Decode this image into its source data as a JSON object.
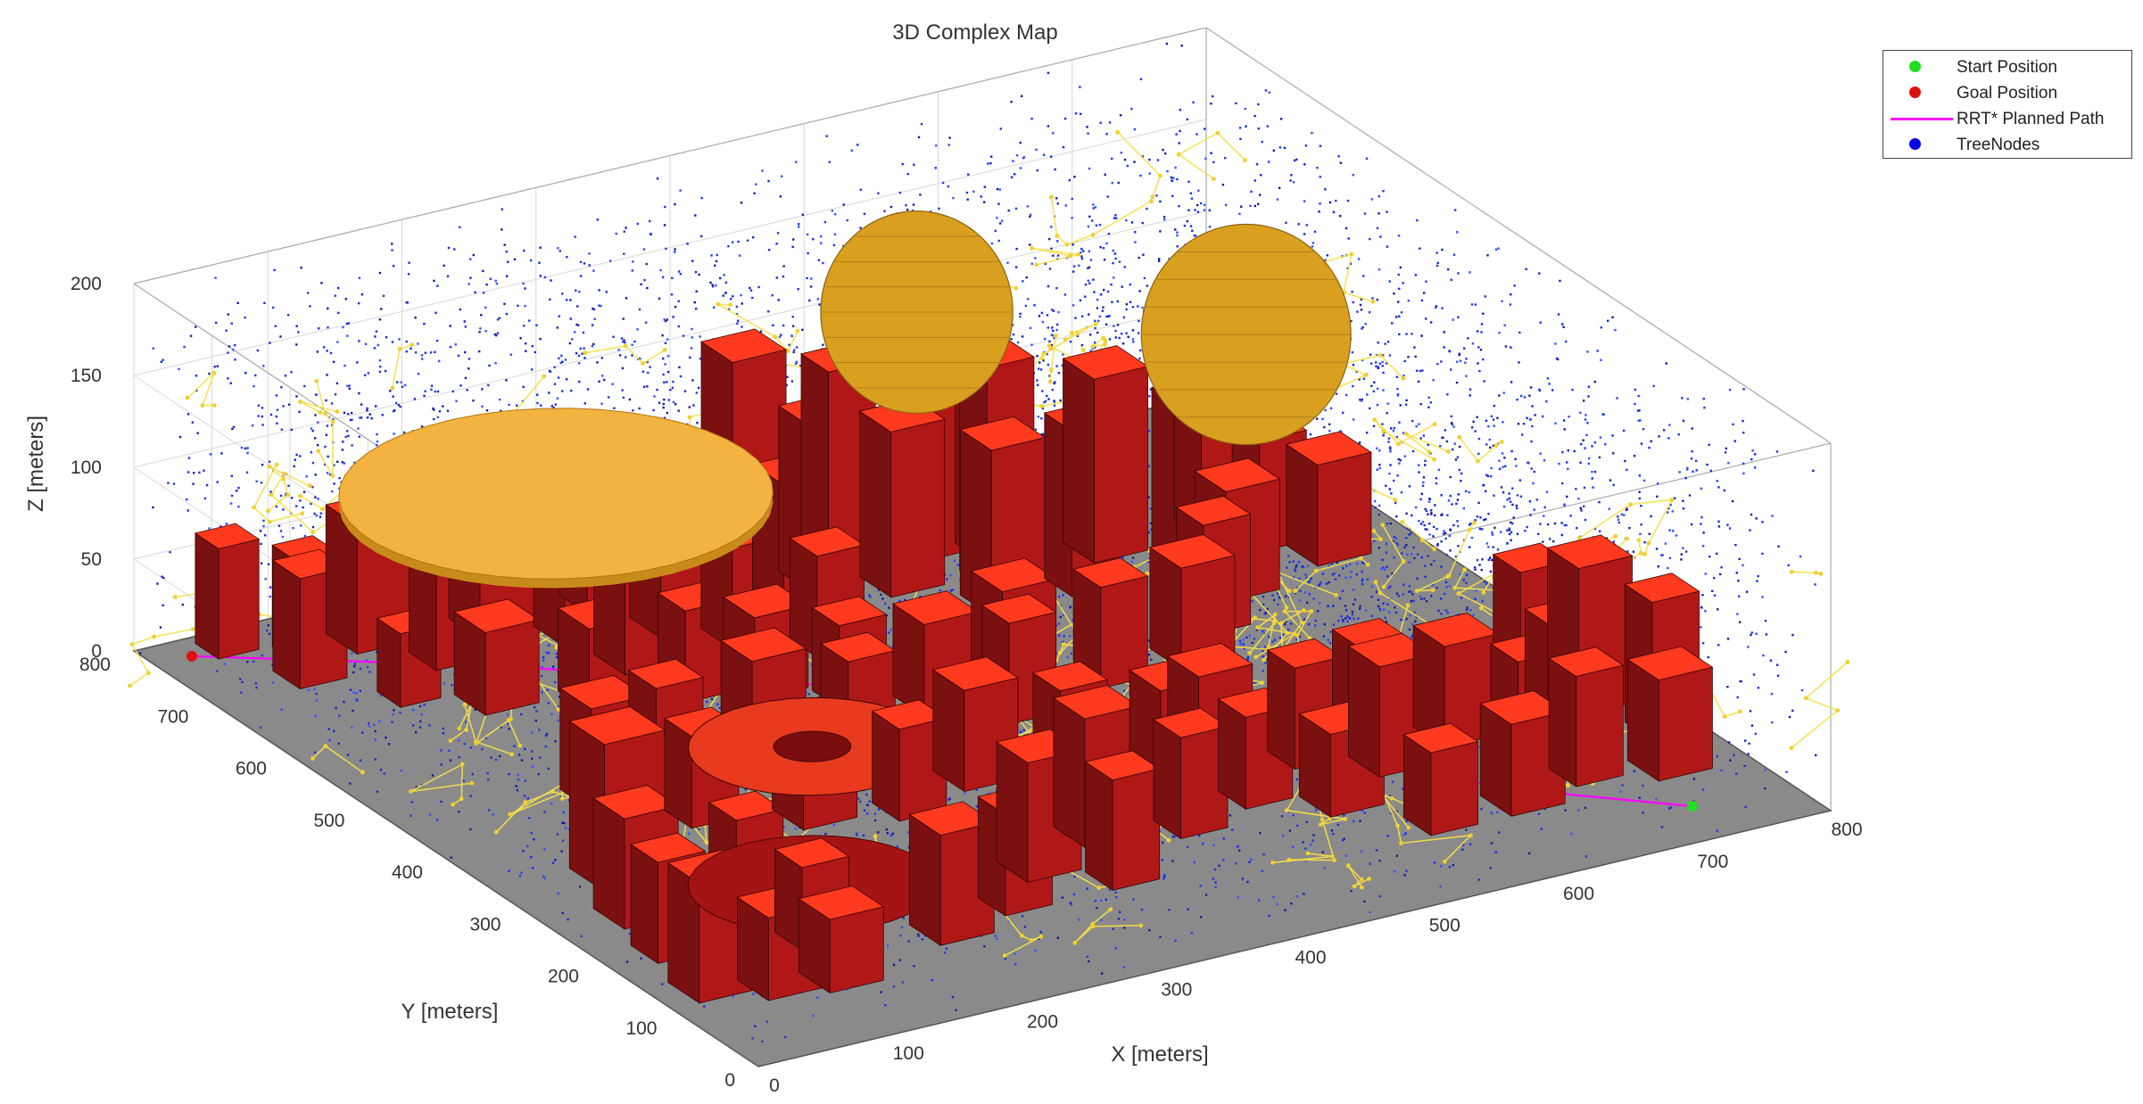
{
  "chart_data": {
    "type": "scatter",
    "title": "3D Complex Map",
    "xlabel": "X [meters]",
    "ylabel": "Y [meters]",
    "zlabel": "Z [meters]",
    "xlim": [
      0,
      800
    ],
    "ylim": [
      0,
      800
    ],
    "zlim": [
      0,
      200
    ],
    "x_ticks": [
      "0",
      "100",
      "200",
      "300",
      "400",
      "500",
      "600",
      "700",
      "800"
    ],
    "y_ticks": [
      "0",
      "100",
      "200",
      "300",
      "400",
      "500",
      "600",
      "700",
      "800"
    ],
    "z_ticks": [
      "0",
      "50",
      "100",
      "150",
      "200"
    ],
    "grid": true,
    "legend_position": "top-right",
    "legend": [
      {
        "label": "Start Position",
        "color": "#22dd22",
        "marker": "dot"
      },
      {
        "label": "Goal Position",
        "color": "#dd1111",
        "marker": "dot"
      },
      {
        "label": "RRT* Planned Path",
        "color": "#ff00ff",
        "marker": "line"
      },
      {
        "label": "TreeNodes",
        "color": "#0000ee",
        "marker": "dot"
      }
    ],
    "start_position": [
      720,
      40,
      5
    ],
    "goal_position": [
      20,
      760,
      5
    ],
    "planned_path": [
      [
        720,
        40,
        5
      ],
      [
        620,
        120,
        10
      ],
      [
        520,
        260,
        20
      ],
      [
        400,
        380,
        25
      ],
      [
        280,
        500,
        20
      ],
      [
        160,
        620,
        15
      ],
      [
        20,
        760,
        5
      ]
    ],
    "obstacles": {
      "buildings": [
        [
          40,
          760,
          0,
          30,
          30,
          60
        ],
        [
          80,
          730,
          0,
          30,
          30,
          55
        ],
        [
          60,
          690,
          0,
          35,
          35,
          60
        ],
        [
          120,
          720,
          0,
          40,
          40,
          70
        ],
        [
          150,
          670,
          0,
          40,
          35,
          65
        ],
        [
          100,
          630,
          0,
          30,
          30,
          40
        ],
        [
          140,
          590,
          0,
          40,
          40,
          45
        ],
        [
          200,
          700,
          0,
          50,
          40,
          80
        ],
        [
          240,
          660,
          0,
          40,
          40,
          60
        ],
        [
          280,
          700,
          0,
          35,
          35,
          70
        ],
        [
          300,
          640,
          0,
          40,
          40,
          60
        ],
        [
          250,
          600,
          0,
          40,
          40,
          50
        ],
        [
          330,
          600,
          0,
          40,
          40,
          55
        ],
        [
          370,
          560,
          0,
          35,
          35,
          55
        ],
        [
          380,
          620,
          0,
          40,
          40,
          75
        ],
        [
          420,
          660,
          0,
          35,
          35,
          90
        ],
        [
          460,
          700,
          0,
          35,
          35,
          100
        ],
        [
          400,
          720,
          0,
          40,
          40,
          110
        ],
        [
          500,
          660,
          0,
          35,
          35,
          120
        ],
        [
          460,
          620,
          0,
          40,
          40,
          90
        ],
        [
          520,
          600,
          0,
          35,
          35,
          120
        ],
        [
          540,
          640,
          0,
          35,
          35,
          100
        ],
        [
          500,
          560,
          0,
          40,
          40,
          90
        ],
        [
          560,
          560,
          0,
          35,
          35,
          90
        ],
        [
          600,
          600,
          0,
          40,
          40,
          100
        ],
        [
          640,
          560,
          0,
          35,
          35,
          90
        ],
        [
          680,
          600,
          0,
          35,
          35,
          70
        ],
        [
          700,
          560,
          0,
          35,
          35,
          60
        ],
        [
          720,
          520,
          0,
          40,
          40,
          55
        ],
        [
          640,
          500,
          0,
          40,
          40,
          60
        ],
        [
          600,
          460,
          0,
          35,
          35,
          60
        ],
        [
          560,
          420,
          0,
          40,
          40,
          55
        ],
        [
          500,
          420,
          0,
          35,
          35,
          55
        ],
        [
          450,
          460,
          0,
          40,
          40,
          50
        ],
        [
          420,
          400,
          0,
          35,
          35,
          55
        ],
        [
          380,
          440,
          0,
          40,
          40,
          50
        ],
        [
          340,
          480,
          0,
          35,
          35,
          45
        ],
        [
          300,
          520,
          0,
          40,
          40,
          45
        ],
        [
          260,
          540,
          0,
          35,
          35,
          50
        ],
        [
          200,
          560,
          0,
          40,
          40,
          45
        ],
        [
          60,
          300,
          0,
          45,
          45,
          80
        ],
        [
          40,
          240,
          0,
          40,
          40,
          60
        ],
        [
          30,
          180,
          0,
          35,
          35,
          55
        ],
        [
          100,
          200,
          0,
          35,
          35,
          60
        ],
        [
          20,
          110,
          0,
          40,
          40,
          65
        ],
        [
          60,
          90,
          0,
          40,
          40,
          45
        ],
        [
          100,
          80,
          0,
          40,
          40,
          40
        ],
        [
          120,
          150,
          0,
          35,
          35,
          45
        ],
        [
          200,
          110,
          0,
          40,
          40,
          60
        ],
        [
          260,
          130,
          0,
          35,
          35,
          55
        ],
        [
          300,
          170,
          0,
          40,
          40,
          65
        ],
        [
          340,
          130,
          0,
          35,
          35,
          60
        ],
        [
          360,
          200,
          0,
          40,
          40,
          70
        ],
        [
          420,
          180,
          0,
          35,
          35,
          55
        ],
        [
          440,
          240,
          0,
          40,
          40,
          60
        ],
        [
          480,
          200,
          0,
          35,
          35,
          50
        ],
        [
          520,
          160,
          0,
          40,
          40,
          45
        ],
        [
          540,
          240,
          0,
          35,
          35,
          55
        ],
        [
          580,
          200,
          0,
          40,
          40,
          60
        ],
        [
          600,
          260,
          0,
          35,
          35,
          50
        ],
        [
          640,
          220,
          0,
          40,
          40,
          55
        ],
        [
          660,
          160,
          0,
          35,
          35,
          60
        ],
        [
          700,
          180,
          0,
          40,
          40,
          65
        ],
        [
          720,
          260,
          0,
          35,
          35,
          70
        ],
        [
          740,
          220,
          0,
          40,
          40,
          80
        ],
        [
          760,
          160,
          0,
          35,
          35,
          75
        ],
        [
          730,
          100,
          0,
          40,
          40,
          55
        ],
        [
          680,
          120,
          0,
          35,
          35,
          60
        ],
        [
          620,
          100,
          0,
          40,
          40,
          50
        ],
        [
          560,
          100,
          0,
          35,
          35,
          45
        ],
        [
          480,
          260,
          0,
          40,
          40,
          55
        ],
        [
          400,
          300,
          0,
          35,
          35,
          50
        ],
        [
          340,
          320,
          0,
          40,
          40,
          55
        ],
        [
          280,
          300,
          0,
          35,
          35,
          50
        ],
        [
          220,
          320,
          0,
          40,
          40,
          55
        ],
        [
          160,
          360,
          0,
          35,
          35,
          50
        ],
        [
          120,
          420,
          0,
          40,
          40,
          55
        ],
        [
          180,
          440,
          0,
          35,
          35,
          50
        ],
        [
          240,
          420,
          0,
          40,
          40,
          60
        ],
        [
          300,
          400,
          0,
          35,
          35,
          55
        ]
      ],
      "cylinder_solid": {
        "center": [
          180,
          240
        ],
        "radius": 80,
        "z_range": [
          0,
          75
        ],
        "inner_radius": 25
      },
      "disk": {
        "center": [
          210,
          620
        ],
        "radius": 140,
        "z_range": [
          95,
          100
        ]
      },
      "sphere_1": {
        "center": [
          520,
          690
        ],
        "radius": 55,
        "z_range": [
          70,
          180
        ]
      },
      "sphere_2": {
        "center": [
          690,
          560
        ],
        "radius": 60,
        "z_range": [
          60,
          180
        ]
      }
    },
    "tree_nodes_count": "dense, uniformly distributed in [0,800]x[0,800]x[0,200]"
  }
}
